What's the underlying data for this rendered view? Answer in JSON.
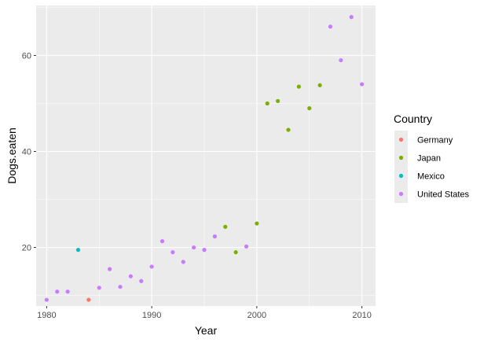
{
  "chart_data": {
    "type": "scatter",
    "xlabel": "Year",
    "ylabel": "Dogs.eaten",
    "xlim": [
      1979,
      2011.3
    ],
    "ylim": [
      7.8,
      70.4
    ],
    "x_ticks": [
      1980,
      1990,
      2000,
      2010
    ],
    "x_tick_labels": [
      "1980",
      "1990",
      "2000",
      "2010"
    ],
    "x_minor_ticks": [
      1985,
      1995,
      2005
    ],
    "y_ticks": [
      20,
      40,
      60
    ],
    "y_tick_labels": [
      "20",
      "40",
      "60"
    ],
    "y_minor_ticks": [
      10,
      30,
      50,
      70
    ],
    "grid": true,
    "legend": {
      "title": "Country",
      "position": "right"
    },
    "colors": {
      "panel_bg": "#EBEBEB",
      "grid": "#FFFFFF"
    },
    "series": [
      {
        "name": "Germany",
        "color": "#F8766D",
        "points": [
          {
            "x": 1984,
            "y": 9.1
          }
        ]
      },
      {
        "name": "Japan",
        "color": "#7CAE00",
        "points": [
          {
            "x": 1997,
            "y": 24.3
          },
          {
            "x": 1998,
            "y": 19.0
          },
          {
            "x": 2000,
            "y": 25.0
          },
          {
            "x": 2001,
            "y": 50.0
          },
          {
            "x": 2002,
            "y": 50.5
          },
          {
            "x": 2003,
            "y": 44.5
          },
          {
            "x": 2004,
            "y": 53.5
          },
          {
            "x": 2005,
            "y": 49.0
          },
          {
            "x": 2006,
            "y": 53.8
          }
        ]
      },
      {
        "name": "Mexico",
        "color": "#00BFC4",
        "points": [
          {
            "x": 1983,
            "y": 19.5
          }
        ]
      },
      {
        "name": "United States",
        "color": "#C77CFF",
        "points": [
          {
            "x": 1980,
            "y": 9.1
          },
          {
            "x": 1981,
            "y": 10.8
          },
          {
            "x": 1982,
            "y": 10.8
          },
          {
            "x": 1985,
            "y": 11.6
          },
          {
            "x": 1986,
            "y": 15.5
          },
          {
            "x": 1987,
            "y": 11.8
          },
          {
            "x": 1988,
            "y": 14.0
          },
          {
            "x": 1989,
            "y": 13.0
          },
          {
            "x": 1990,
            "y": 16.0
          },
          {
            "x": 1991,
            "y": 21.3
          },
          {
            "x": 1992,
            "y": 19.0
          },
          {
            "x": 1993,
            "y": 17.0
          },
          {
            "x": 1994,
            "y": 20.0
          },
          {
            "x": 1995,
            "y": 19.5
          },
          {
            "x": 1996,
            "y": 22.3
          },
          {
            "x": 1999,
            "y": 20.2
          },
          {
            "x": 2007,
            "y": 66.0
          },
          {
            "x": 2008,
            "y": 59.0
          },
          {
            "x": 2009,
            "y": 68.0
          },
          {
            "x": 2010,
            "y": 54.0
          }
        ]
      }
    ]
  }
}
